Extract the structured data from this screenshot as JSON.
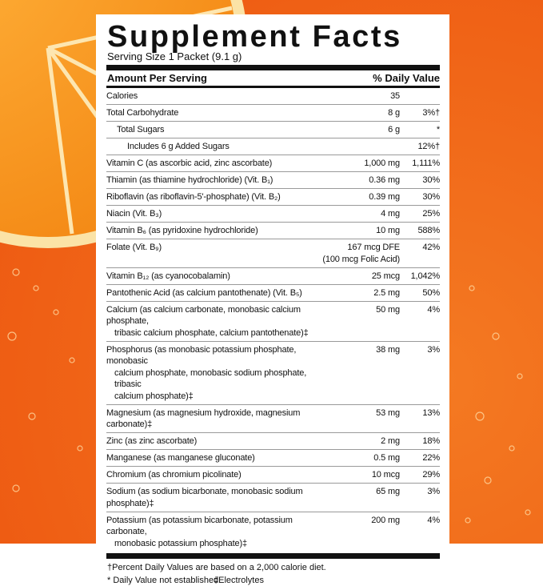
{
  "header": {
    "title": "Supplement Facts",
    "serving_size": "Serving Size 1 Packet (9.1 g)",
    "amount_heading": "Amount Per Serving",
    "dv_heading": "% Daily Value"
  },
  "rows": [
    {
      "label": [
        "Calories"
      ],
      "amount": "35",
      "indent": 0
    },
    {
      "label": [
        "Total Carbohydrate"
      ],
      "amount": "8 g",
      "dv": "3%†",
      "indent": 0
    },
    {
      "label": [
        "Total Sugars"
      ],
      "amount": "6 g",
      "dv": "*",
      "indent": 1
    },
    {
      "label": [
        "Includes 6 g Added Sugars"
      ],
      "dv": "12%†",
      "indent": 2
    },
    {
      "label": [
        "Vitamin C (as ascorbic acid, zinc ascorbate)"
      ],
      "amount": "1,000 mg",
      "dv": "1,111%",
      "indent": 0
    },
    {
      "label": [
        "Thiamin (as thiamine hydrochloride) (Vit. B₁)"
      ],
      "amount": "0.36 mg",
      "dv": "30%",
      "indent": 0
    },
    {
      "label": [
        "Riboflavin (as riboflavin-5'-phosphate) (Vit. B₂)"
      ],
      "amount": "0.39 mg",
      "dv": "30%",
      "indent": 0
    },
    {
      "label": [
        "Niacin (Vit. B₃)"
      ],
      "amount": "4 mg",
      "dv": "25%",
      "indent": 0
    },
    {
      "label": [
        "Vitamin B₆ (as pyridoxine hydrochloride)"
      ],
      "amount": "10 mg",
      "dv": "588%",
      "indent": 0
    },
    {
      "label": [
        "Folate (Vit. B₉)"
      ],
      "amount": "167 mcg DFE",
      "amount_note": "(100 mcg Folic Acid)",
      "dv": "42%",
      "indent": 0
    },
    {
      "label": [
        "Vitamin B₁₂ (as cyanocobalamin)"
      ],
      "amount": "25 mcg",
      "dv": "1,042%",
      "indent": 0
    },
    {
      "label": [
        "Pantothenic Acid (as calcium pantothenate) (Vit. B₅)"
      ],
      "amount": "2.5 mg",
      "dv": "50%",
      "indent": 0
    },
    {
      "label": [
        "Calcium (as calcium carbonate, monobasic calcium phosphate,",
        "tribasic calcium phosphate, calcium pantothenate)‡"
      ],
      "amount": "50 mg",
      "dv": "4%",
      "indent": 0
    },
    {
      "label": [
        "Phosphorus (as monobasic potassium phosphate, monobasic",
        "calcium phosphate, monobasic sodium phosphate, tribasic",
        "calcium phosphate)‡"
      ],
      "amount": "38 mg",
      "dv": "3%",
      "indent": 0
    },
    {
      "label": [
        "Magnesium (as magnesium hydroxide, magnesium carbonate)‡"
      ],
      "amount": "53 mg",
      "dv": "13%",
      "indent": 0
    },
    {
      "label": [
        "Zinc (as zinc ascorbate)"
      ],
      "amount": "2 mg",
      "dv": "18%",
      "indent": 0
    },
    {
      "label": [
        "Manganese (as manganese gluconate)"
      ],
      "amount": "0.5 mg",
      "dv": "22%",
      "indent": 0
    },
    {
      "label": [
        "Chromium (as chromium picolinate)"
      ],
      "amount": "10 mcg",
      "dv": "29%",
      "indent": 0
    },
    {
      "label": [
        "Sodium (as sodium bicarbonate, monobasic sodium phosphate)‡"
      ],
      "amount": "65 mg",
      "dv": "3%",
      "indent": 0
    },
    {
      "label": [
        "Potassium (as potassium bicarbonate, potassium carbonate,",
        "monobasic potassium phosphate)‡"
      ],
      "amount": "200 mg",
      "dv": "4%",
      "indent": 0
    }
  ],
  "footnotes": [
    "†Percent Daily Values are based on a 2,000 calorie diet.",
    "* Daily Value not established.",
    "‡Electrolytes"
  ]
}
